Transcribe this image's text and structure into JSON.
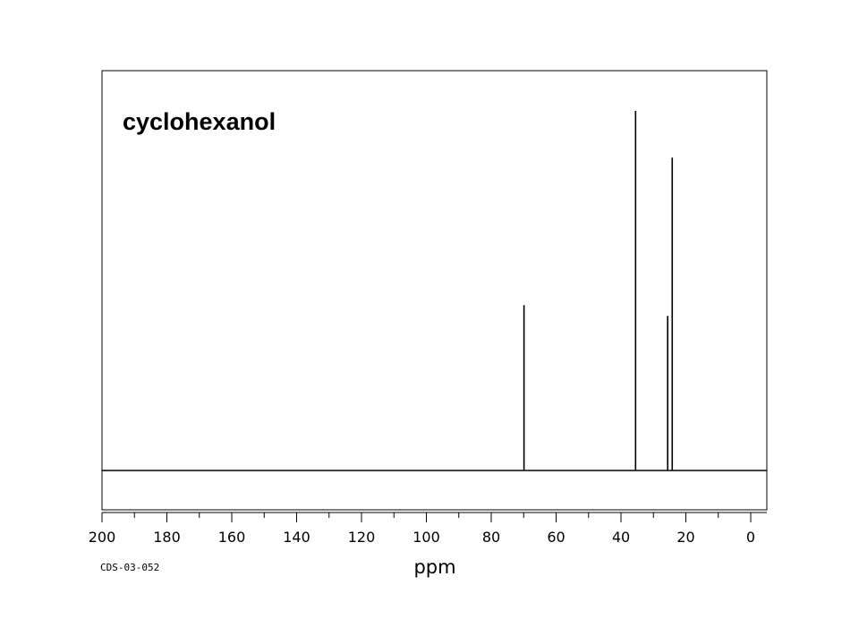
{
  "chart_data": {
    "type": "line",
    "title": "cyclohexanol",
    "xlabel": "ppm",
    "ylabel": "",
    "xlim": [
      200,
      0
    ],
    "x_reversed": true,
    "ylim": [
      0,
      1
    ],
    "grid": false,
    "legend": "none",
    "spectrum_code": "CDS-03-052",
    "tick_labels": [
      "200",
      "180",
      "160",
      "140",
      "120",
      "100",
      "80",
      "60",
      "40",
      "20",
      "0"
    ],
    "tick_values": [
      200,
      180,
      160,
      140,
      120,
      100,
      80,
      60,
      40,
      20,
      0
    ],
    "minor_tick_step": 10,
    "peaks": [
      {
        "ppm": 69.9,
        "intensity": 0.46
      },
      {
        "ppm": 35.5,
        "intensity": 1.0
      },
      {
        "ppm": 25.6,
        "intensity": 0.43
      },
      {
        "ppm": 24.2,
        "intensity": 0.87
      }
    ]
  }
}
